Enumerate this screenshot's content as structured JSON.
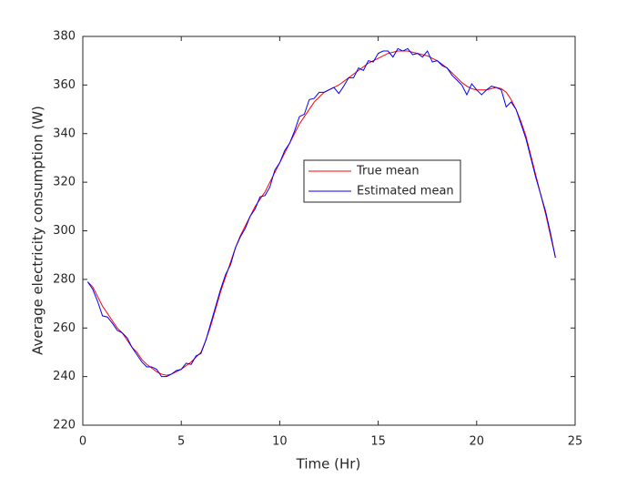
{
  "chart_data": {
    "type": "line",
    "xlabel": "Time (Hr)",
    "ylabel": "Average electricity consumption (W)",
    "x": [
      0.25,
      0.5,
      0.75,
      1,
      1.25,
      1.5,
      1.75,
      2,
      2.25,
      2.5,
      2.75,
      3,
      3.25,
      3.5,
      3.75,
      4,
      4.25,
      4.5,
      4.75,
      5,
      5.25,
      5.5,
      5.75,
      6,
      6.25,
      6.5,
      6.75,
      7,
      7.25,
      7.5,
      7.75,
      8,
      8.25,
      8.5,
      8.75,
      9,
      9.25,
      9.5,
      9.75,
      10,
      10.25,
      10.5,
      10.75,
      11,
      11.25,
      11.5,
      11.75,
      12,
      12.25,
      12.5,
      12.75,
      13,
      13.25,
      13.5,
      13.75,
      14,
      14.25,
      14.5,
      14.75,
      15,
      15.25,
      15.5,
      15.75,
      16,
      16.25,
      16.5,
      16.75,
      17,
      17.25,
      17.5,
      17.75,
      18,
      18.25,
      18.5,
      18.75,
      19,
      19.25,
      19.5,
      19.75,
      20,
      20.25,
      20.5,
      20.75,
      21,
      21.25,
      21.5,
      21.75,
      22,
      22.25,
      22.5,
      22.75,
      23,
      23.25,
      23.5,
      23.75,
      24
    ],
    "series": [
      {
        "name": "True mean",
        "color": "#ff0000",
        "values": [
          279,
          277,
          273,
          269,
          266,
          263,
          260,
          258,
          255,
          252,
          250,
          247,
          245,
          243.5,
          242,
          241,
          240.5,
          241,
          242,
          243,
          244.5,
          246,
          248,
          250,
          255,
          261,
          268,
          275,
          281,
          287,
          293,
          298,
          302,
          306,
          310,
          313,
          316,
          320,
          324,
          328,
          332,
          336,
          340,
          344,
          347,
          350,
          353,
          355,
          357,
          358,
          359,
          360,
          361.5,
          363,
          364.5,
          366,
          367.5,
          369,
          370,
          371,
          372,
          373,
          373.5,
          374,
          374,
          374,
          373.5,
          373,
          372.5,
          372,
          371,
          370,
          368.5,
          367,
          365,
          363,
          361,
          359.5,
          358.5,
          358,
          358,
          358,
          358.5,
          359,
          358.5,
          357,
          354,
          350,
          345,
          339,
          331,
          323,
          315,
          307,
          298,
          289
        ]
      },
      {
        "name": "Estimated mean",
        "color": "#0000ff",
        "values": [
          279,
          276,
          271,
          265,
          264.5,
          262,
          259,
          258,
          256,
          252,
          249,
          246,
          244,
          244,
          243,
          240,
          240,
          241,
          242.5,
          243,
          245.5,
          245,
          248.5,
          249.5,
          255,
          262,
          269,
          276,
          282,
          286,
          293,
          297.5,
          301,
          306,
          309,
          314,
          314.5,
          318,
          325,
          328,
          333,
          336,
          341,
          347,
          348,
          354,
          354.5,
          357,
          357,
          358,
          359,
          356.5,
          359.5,
          363,
          363,
          367,
          366,
          370,
          369.5,
          373,
          374,
          374,
          371.5,
          375,
          374,
          375,
          372.5,
          373,
          371.5,
          374,
          369.5,
          370,
          368,
          367,
          364,
          362,
          360,
          356,
          360.5,
          358,
          356,
          358,
          359.5,
          359,
          358,
          351,
          353,
          350,
          344,
          338,
          330,
          322,
          315,
          308,
          299,
          289
        ]
      }
    ],
    "xlim": [
      0,
      25
    ],
    "xticks": [
      0,
      5,
      10,
      15,
      20,
      25
    ],
    "ylim": [
      220,
      380
    ],
    "yticks": [
      220,
      240,
      260,
      280,
      300,
      320,
      340,
      360,
      380
    ],
    "legend": "center"
  }
}
